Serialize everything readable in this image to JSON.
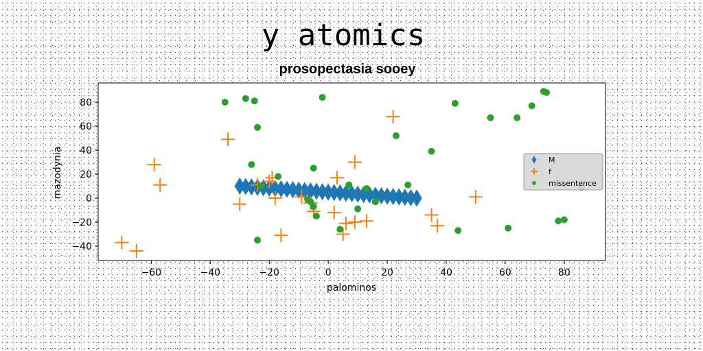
{
  "chart_data": {
    "type": "scatter",
    "title": "y atomics",
    "subtitle": "prosopectasia sooey",
    "xlabel": "palominos",
    "ylabel": "mazodynia",
    "xlim": [
      -78,
      94
    ],
    "ylim": [
      -52,
      96
    ],
    "xticks": [
      -60,
      -40,
      -20,
      0,
      20,
      40,
      60,
      80
    ],
    "yticks": [
      -40,
      -20,
      0,
      20,
      40,
      60,
      80
    ],
    "grid": false,
    "legend_position": "center-right",
    "series": [
      {
        "name": "M",
        "marker": "diamond",
        "color": "#1f77b4",
        "x": [
          -30,
          -28,
          -26,
          -24,
          -22,
          -20,
          -18,
          -16,
          -14,
          -12,
          -10,
          -8,
          -6,
          -4,
          -2,
          0,
          2,
          4,
          6,
          8,
          10,
          12,
          14,
          16,
          18,
          20,
          22,
          24,
          26,
          28,
          30
        ],
        "y": [
          10,
          9.67,
          9.33,
          9,
          8.67,
          8.33,
          8,
          7.67,
          7.33,
          7,
          6.67,
          6.33,
          6,
          5.67,
          5.33,
          5,
          4.67,
          4.33,
          4,
          3.67,
          3.33,
          3,
          2.67,
          2.33,
          2,
          1.67,
          1.33,
          1,
          0.67,
          0.33,
          0
        ]
      },
      {
        "name": "f",
        "marker": "plus",
        "color": "#ff7f0e",
        "x": [
          -70,
          -65,
          -59,
          -57,
          -34,
          -30,
          -24,
          -20,
          -19,
          -18,
          -16,
          -9,
          -6,
          -5,
          2,
          3,
          5,
          6,
          9,
          9,
          13,
          22,
          35,
          37,
          50
        ],
        "y": [
          -37,
          -44,
          28,
          11,
          49,
          -5,
          11,
          14,
          17,
          0,
          -31,
          1,
          -4,
          -11,
          -12,
          17,
          -30,
          -21,
          30,
          -20,
          -19,
          68,
          -14,
          -23,
          1
        ]
      },
      {
        "name": "missentence",
        "marker": "circle",
        "color": "#2ca02c",
        "x": [
          -35,
          -28,
          -25,
          -24,
          -26,
          -24,
          -23,
          -17,
          -7,
          -6,
          -5,
          -5,
          -4,
          -2,
          4,
          7,
          10,
          13,
          16,
          23,
          27,
          35,
          44,
          43,
          55,
          61,
          64,
          69,
          73,
          74,
          78,
          80,
          86
        ],
        "y": [
          80,
          83,
          81,
          59,
          28,
          -35,
          10,
          18,
          -1,
          -3,
          -7,
          25,
          -15,
          84,
          -26,
          11,
          -9,
          8,
          -3,
          52,
          11,
          39,
          -27,
          79,
          67,
          -25,
          67,
          77,
          89,
          88,
          -19,
          -18,
          9
        ]
      }
    ]
  }
}
